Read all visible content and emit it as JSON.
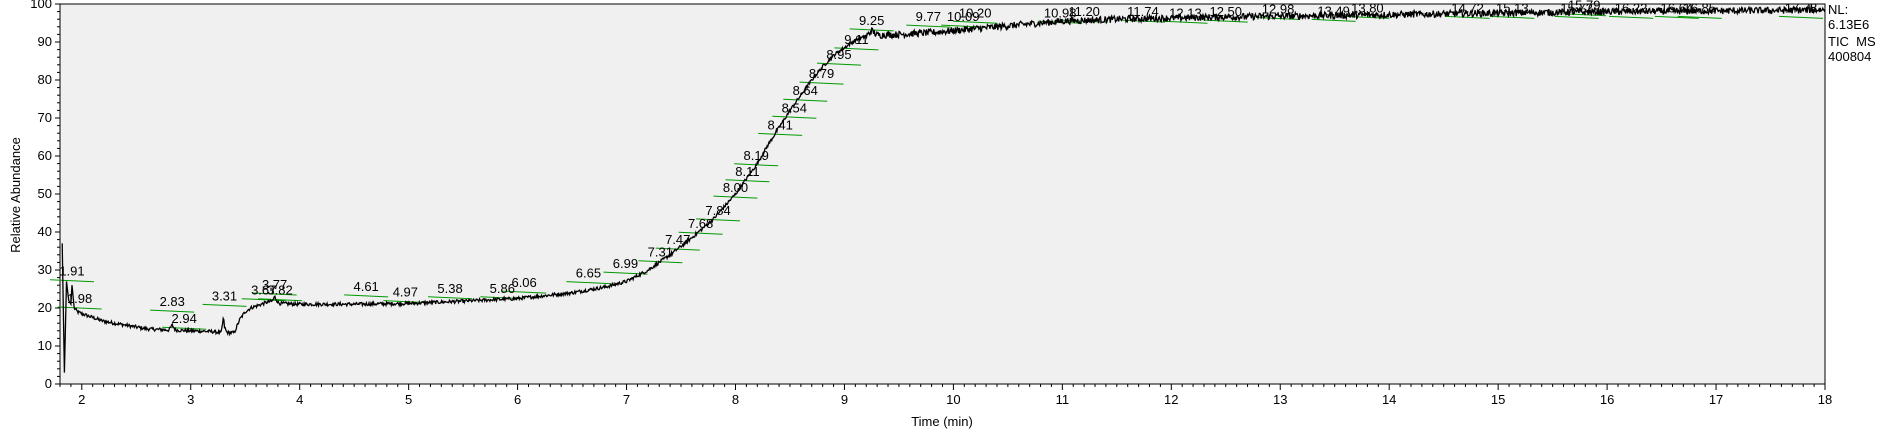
{
  "chart_data": {
    "type": "line",
    "xlabel": "Time (min)",
    "ylabel": "Relative Abundance",
    "xlim": [
      1.8,
      18.0
    ],
    "ylim": [
      0,
      100
    ],
    "x_ticks": [
      "2",
      "3",
      "4",
      "5",
      "6",
      "7",
      "8",
      "9",
      "10",
      "11",
      "12",
      "13",
      "14",
      "15",
      "16",
      "17",
      "18"
    ],
    "y_ticks": [
      "0",
      "10",
      "20",
      "30",
      "40",
      "50",
      "60",
      "70",
      "80",
      "90",
      "100"
    ],
    "grid": false,
    "info_lines": [
      "NL:",
      "6.13E6",
      "TIC  MS",
      "400804"
    ],
    "series": [
      {
        "x": [
          1.82,
          1.84,
          1.86,
          1.88,
          1.9,
          1.91,
          1.93,
          1.96,
          2.0,
          2.2,
          2.4,
          2.6,
          2.8,
          2.83,
          2.86,
          3.0,
          3.2,
          3.28,
          3.3,
          3.31,
          3.33,
          3.36,
          3.4,
          3.45,
          3.5,
          3.55,
          3.6,
          3.65,
          3.7,
          3.75,
          3.77,
          3.8,
          3.82,
          4.0,
          4.5,
          5.0,
          5.5,
          6.0,
          6.5,
          6.8,
          7.0,
          7.2,
          7.4,
          7.6,
          7.8,
          8.0,
          8.1,
          8.2,
          8.3,
          8.4,
          8.5,
          8.6,
          8.7,
          8.8,
          8.9,
          9.0,
          9.1,
          9.2,
          9.25,
          9.3,
          9.5,
          9.8,
          10.2,
          10.6,
          11.0,
          11.5,
          12.0,
          12.5,
          13.0,
          13.5,
          14.0,
          14.5,
          15.0,
          15.5,
          16.0,
          16.5,
          17.0,
          17.5,
          18.0
        ],
        "y": [
          37,
          3,
          27,
          22,
          21,
          26,
          20,
          19,
          18.5,
          16.5,
          15.5,
          14.5,
          14.2,
          15.5,
          14.2,
          14.0,
          13.8,
          13.5,
          17.5,
          15.0,
          13.6,
          13.5,
          13.5,
          17.0,
          19.0,
          20.0,
          20.5,
          21.0,
          21.5,
          21.8,
          23.0,
          21.5,
          21.2,
          21.0,
          21.0,
          21.2,
          21.8,
          22.5,
          24.0,
          25.5,
          27.0,
          30.0,
          34.0,
          38.5,
          43.5,
          50.0,
          54.0,
          58.0,
          63.0,
          67.5,
          72.0,
          76.0,
          80.0,
          83.5,
          86.5,
          88.5,
          90.5,
          91.5,
          93.0,
          91.8,
          92.0,
          92.5,
          93.5,
          94.5,
          95.5,
          96.0,
          96.3,
          96.6,
          96.8,
          97.0,
          97.2,
          97.4,
          97.6,
          97.8,
          98.0,
          98.1,
          98.2,
          98.3,
          98.5
        ]
      }
    ],
    "peak_labels": [
      {
        "text": "1.91",
        "x": 1.91,
        "y": 28.5
      },
      {
        "text": "1.98",
        "x": 1.98,
        "y": 21.3
      },
      {
        "text": "2.83",
        "x": 2.83,
        "y": 20.5
      },
      {
        "text": "2.94",
        "x": 2.94,
        "y": 16.0
      },
      {
        "text": "3.31",
        "x": 3.31,
        "y": 22.0
      },
      {
        "text": "3.67",
        "x": 3.67,
        "y": 23.5
      },
      {
        "text": "3.77",
        "x": 3.77,
        "y": 25.0
      },
      {
        "text": "3.82",
        "x": 3.82,
        "y": 23.5
      },
      {
        "text": "4.61",
        "x": 4.61,
        "y": 24.5
      },
      {
        "text": "4.97",
        "x": 4.97,
        "y": 23.0
      },
      {
        "text": "5.38",
        "x": 5.38,
        "y": 24.0
      },
      {
        "text": "5.86",
        "x": 5.86,
        "y": 24.0
      },
      {
        "text": "6.06",
        "x": 6.06,
        "y": 25.5
      },
      {
        "text": "6.65",
        "x": 6.65,
        "y": 28.0
      },
      {
        "text": "6.99",
        "x": 6.99,
        "y": 30.5
      },
      {
        "text": "7.31",
        "x": 7.31,
        "y": 33.5
      },
      {
        "text": "7.47",
        "x": 7.47,
        "y": 36.8
      },
      {
        "text": "7.68",
        "x": 7.68,
        "y": 41.0
      },
      {
        "text": "7.84",
        "x": 7.84,
        "y": 44.5
      },
      {
        "text": "8.00",
        "x": 8.0,
        "y": 50.5
      },
      {
        "text": "8.11",
        "x": 8.11,
        "y": 54.8
      },
      {
        "text": "8.19",
        "x": 8.19,
        "y": 59.0
      },
      {
        "text": "8.41",
        "x": 8.41,
        "y": 67.0
      },
      {
        "text": "8.54",
        "x": 8.54,
        "y": 71.5
      },
      {
        "text": "8.64",
        "x": 8.64,
        "y": 76.0
      },
      {
        "text": "8.79",
        "x": 8.79,
        "y": 80.5
      },
      {
        "text": "8.95",
        "x": 8.95,
        "y": 85.5
      },
      {
        "text": "9.11",
        "x": 9.11,
        "y": 89.5
      },
      {
        "text": "9.25",
        "x": 9.25,
        "y": 94.5
      },
      {
        "text": "9.77",
        "x": 9.77,
        "y": 95.5
      },
      {
        "text": "10.09",
        "x": 10.09,
        "y": 95.5
      },
      {
        "text": "10.20",
        "x": 10.2,
        "y": 96.5
      },
      {
        "text": "10.98",
        "x": 10.98,
        "y": 96.5
      },
      {
        "text": "11.20",
        "x": 11.2,
        "y": 96.8
      },
      {
        "text": "11.74",
        "x": 11.74,
        "y": 96.8
      },
      {
        "text": "12.13",
        "x": 12.13,
        "y": 96.5
      },
      {
        "text": "12.50",
        "x": 12.5,
        "y": 96.8
      },
      {
        "text": "12.98",
        "x": 12.98,
        "y": 97.5
      },
      {
        "text": "13.49",
        "x": 13.49,
        "y": 97.0
      },
      {
        "text": "13.80",
        "x": 13.8,
        "y": 97.8
      },
      {
        "text": "14.72",
        "x": 14.72,
        "y": 97.8
      },
      {
        "text": "15.13",
        "x": 15.13,
        "y": 97.8
      },
      {
        "text": "15.72",
        "x": 15.72,
        "y": 97.8
      },
      {
        "text": "15.79",
        "x": 15.79,
        "y": 98.5
      },
      {
        "text": "16.22",
        "x": 16.22,
        "y": 97.8
      },
      {
        "text": "16.64",
        "x": 16.64,
        "y": 97.8
      },
      {
        "text": "16.85",
        "x": 16.85,
        "y": 97.8
      },
      {
        "text": "17.78",
        "x": 17.78,
        "y": 97.8
      }
    ],
    "colors": {
      "plot_background": "#f0f0f0",
      "trace": "#000000",
      "peak_marker": "#009900",
      "axis": "#000000"
    }
  }
}
